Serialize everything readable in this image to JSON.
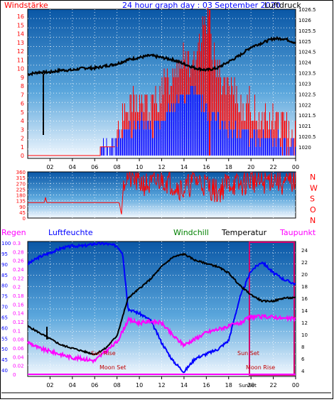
{
  "header": {
    "left_title": "Windstärke",
    "center_title": "24 hour graph day : 03 September 2020",
    "right_title": "Luftdruck"
  },
  "colors": {
    "red": "#ff0000",
    "blue": "#0000ff",
    "black": "#000000",
    "magenta": "#ff00ff",
    "green": "#008000",
    "frame": "#000000",
    "panel_top": "#0b5aa8",
    "panel_bottom": "#ffffff"
  },
  "time_axis": {
    "ticks": [
      "02",
      "04",
      "06",
      "08",
      "10",
      "12",
      "14",
      "16",
      "18",
      "20",
      "22",
      "00"
    ]
  },
  "panel1": {
    "wind_ticks": [
      "0",
      "1",
      "2",
      "3",
      "4",
      "5",
      "6",
      "7",
      "8",
      "9",
      "10",
      "11",
      "12",
      "13",
      "14",
      "15",
      "16"
    ],
    "pressure_ticks": [
      "1020",
      "1020.5",
      "1021",
      "1021.5",
      "1022",
      "1022.5",
      "1023",
      "1023.5",
      "1024",
      "1024.5",
      "1025",
      "1025.5",
      "1026",
      "1026.5"
    ]
  },
  "panel2": {
    "deg_ticks": [
      "0",
      "45",
      "90",
      "135",
      "180",
      "225",
      "270",
      "315",
      "360"
    ],
    "compass": [
      "N",
      "W",
      "S",
      "O",
      "N"
    ]
  },
  "panel3": {
    "legend": {
      "regen": "Regen",
      "luftfeuchte": "Luftfeuchte",
      "windchill": "Windchill",
      "temperatur": "Temperatur",
      "taupunkt": "Taupunkt"
    },
    "humidity_ticks": [
      "40",
      "45",
      "50",
      "55",
      "60",
      "65",
      "70",
      "75",
      "80",
      "85",
      "90",
      "95",
      "100"
    ],
    "rain_ticks": [
      "0",
      "0.02",
      "0.04",
      "0.06",
      "0.08",
      "0.1",
      "0.12",
      "0.14",
      "0.16",
      "0.18",
      "0.2",
      "0.22",
      "0.24",
      "0.26",
      "0.28",
      "0.3"
    ],
    "temp_ticks": [
      "4",
      "6",
      "8",
      "10",
      "12",
      "14",
      "16",
      "18",
      "20",
      "22",
      "24"
    ],
    "annotations": {
      "sun_rise": "Sun Rise",
      "moon_set": "Moon Set",
      "sun_set": "Sun Set",
      "moon_rise": "Moon Rise",
      "sunset_marker": "SunSet"
    }
  },
  "chart_data": [
    {
      "type": "line",
      "title": "24 hour graph day : 03 September 2020",
      "x_unit": "hour",
      "xlim": [
        0,
        24
      ],
      "series": [
        {
          "name": "Luftdruck",
          "axis": "right",
          "ylim": [
            1019.6,
            1026.7
          ],
          "points": [
            [
              0,
              1023.6
            ],
            [
              1,
              1023.7
            ],
            [
              2,
              1023.7
            ],
            [
              3,
              1023.8
            ],
            [
              4,
              1023.8
            ],
            [
              5,
              1023.9
            ],
            [
              6,
              1023.9
            ],
            [
              7,
              1024.0
            ],
            [
              8,
              1024.1
            ],
            [
              9,
              1024.3
            ],
            [
              10,
              1024.4
            ],
            [
              11,
              1024.5
            ],
            [
              12,
              1024.4
            ],
            [
              13,
              1024.3
            ],
            [
              14,
              1024.1
            ],
            [
              15,
              1023.9
            ],
            [
              16,
              1023.8
            ],
            [
              17,
              1023.9
            ],
            [
              18,
              1024.2
            ],
            [
              19,
              1024.5
            ],
            [
              20,
              1024.9
            ],
            [
              21,
              1025.1
            ],
            [
              22,
              1025.3
            ],
            [
              23,
              1025.3
            ],
            [
              24,
              1025.1
            ]
          ]
        },
        {
          "name": "Windstärke",
          "axis": "left",
          "ylim": [
            0,
            16.5
          ],
          "points": [
            [
              0,
              0
            ],
            [
              6.5,
              0
            ],
            [
              6.5,
              1
            ],
            [
              7.8,
              1
            ],
            [
              8,
              2
            ],
            [
              9,
              3
            ],
            [
              10,
              4
            ],
            [
              11,
              3
            ],
            [
              12,
              4
            ],
            [
              13,
              6
            ],
            [
              14,
              7
            ],
            [
              15,
              8
            ],
            [
              16,
              5
            ],
            [
              17,
              4
            ],
            [
              18,
              3
            ],
            [
              19,
              3
            ],
            [
              20,
              2
            ],
            [
              21,
              2
            ],
            [
              22,
              2
            ],
            [
              23,
              1
            ],
            [
              24,
              1
            ]
          ]
        },
        {
          "name": "Windböen",
          "axis": "left",
          "ylim": [
            0,
            16.5
          ],
          "points": [
            [
              8,
              3
            ],
            [
              9,
              5
            ],
            [
              10,
              6
            ],
            [
              11,
              5
            ],
            [
              12,
              7
            ],
            [
              13,
              9
            ],
            [
              14,
              12
            ],
            [
              15,
              9
            ],
            [
              16,
              16
            ],
            [
              17,
              9
            ],
            [
              18,
              7
            ],
            [
              19,
              6
            ],
            [
              20,
              5
            ],
            [
              21,
              4
            ],
            [
              22,
              4
            ],
            [
              23,
              3
            ],
            [
              24,
              3
            ]
          ]
        }
      ]
    },
    {
      "type": "line",
      "x_unit": "hour",
      "xlim": [
        0,
        24
      ],
      "series": [
        {
          "name": "Windrichtung",
          "ylim": [
            0,
            360
          ],
          "points": [
            [
              0,
              120
            ],
            [
              1.5,
              120
            ],
            [
              1.6,
              165
            ],
            [
              1.7,
              120
            ],
            [
              8.2,
              120
            ],
            [
              8.4,
              25
            ],
            [
              8.6,
              300
            ],
            [
              9,
              320
            ],
            [
              10,
              280
            ],
            [
              11,
              250
            ],
            [
              12,
              310
            ],
            [
              13,
              270
            ],
            [
              14,
              220
            ],
            [
              15,
              300
            ],
            [
              16,
              260
            ],
            [
              17,
              200
            ],
            [
              18,
              280
            ],
            [
              19,
              250
            ],
            [
              20,
              300
            ],
            [
              21,
              270
            ],
            [
              22,
              320
            ],
            [
              23,
              260
            ],
            [
              24,
              300
            ]
          ]
        }
      ]
    },
    {
      "type": "line",
      "x_unit": "hour",
      "xlim": [
        0,
        24
      ],
      "series": [
        {
          "name": "Luftfeuchte",
          "axis": "left",
          "ylim": [
            40,
            100
          ],
          "points": [
            [
              0,
              90
            ],
            [
              1,
              93
            ],
            [
              2,
              95
            ],
            [
              3,
              97
            ],
            [
              4,
              98
            ],
            [
              5,
              98
            ],
            [
              6,
              99
            ],
            [
              7,
              99
            ],
            [
              8,
              98
            ],
            [
              8.5,
              95
            ],
            [
              9,
              70
            ],
            [
              10,
              68
            ],
            [
              11,
              65
            ],
            [
              12,
              55
            ],
            [
              13,
              47
            ],
            [
              14,
              42
            ],
            [
              15,
              48
            ],
            [
              16,
              50
            ],
            [
              17,
              52
            ],
            [
              18,
              56
            ],
            [
              19,
              75
            ],
            [
              20,
              87
            ],
            [
              21,
              91
            ],
            [
              22,
              86
            ],
            [
              23,
              83
            ],
            [
              24,
              81
            ]
          ]
        },
        {
          "name": "Temperatur",
          "axis": "right",
          "ylim": [
            3.5,
            25
          ],
          "points": [
            [
              0,
              11.5
            ],
            [
              1,
              10.5
            ],
            [
              2,
              9.5
            ],
            [
              3,
              8.5
            ],
            [
              4,
              8
            ],
            [
              5,
              7.5
            ],
            [
              6,
              7
            ],
            [
              7,
              8
            ],
            [
              8,
              10
            ],
            [
              9,
              16
            ],
            [
              10,
              17.5
            ],
            [
              11,
              19
            ],
            [
              12,
              21
            ],
            [
              13,
              22.5
            ],
            [
              14,
              23
            ],
            [
              15,
              22
            ],
            [
              16,
              21.5
            ],
            [
              17,
              21
            ],
            [
              18,
              20
            ],
            [
              19,
              18
            ],
            [
              20,
              16.5
            ],
            [
              21,
              15.5
            ],
            [
              22,
              15.5
            ],
            [
              23,
              16
            ],
            [
              24,
              16
            ]
          ]
        },
        {
          "name": "Taupunkt",
          "axis": "right",
          "ylim": [
            3.5,
            25
          ],
          "points": [
            [
              0,
              9
            ],
            [
              1,
              8
            ],
            [
              2,
              7.5
            ],
            [
              3,
              7
            ],
            [
              4,
              6.5
            ],
            [
              5,
              6.3
            ],
            [
              6,
              6
            ],
            [
              7,
              7.5
            ],
            [
              8,
              9
            ],
            [
              9,
              12.5
            ],
            [
              10,
              12
            ],
            [
              11,
              12.3
            ],
            [
              12,
              12
            ],
            [
              13,
              10
            ],
            [
              14,
              8.5
            ],
            [
              15,
              9.5
            ],
            [
              16,
              10.5
            ],
            [
              17,
              11
            ],
            [
              18,
              11.5
            ],
            [
              19,
              12
            ],
            [
              20,
              13
            ],
            [
              21,
              13
            ],
            [
              22,
              13
            ],
            [
              23,
              12.7
            ],
            [
              24,
              12.7
            ]
          ]
        }
      ]
    }
  ]
}
